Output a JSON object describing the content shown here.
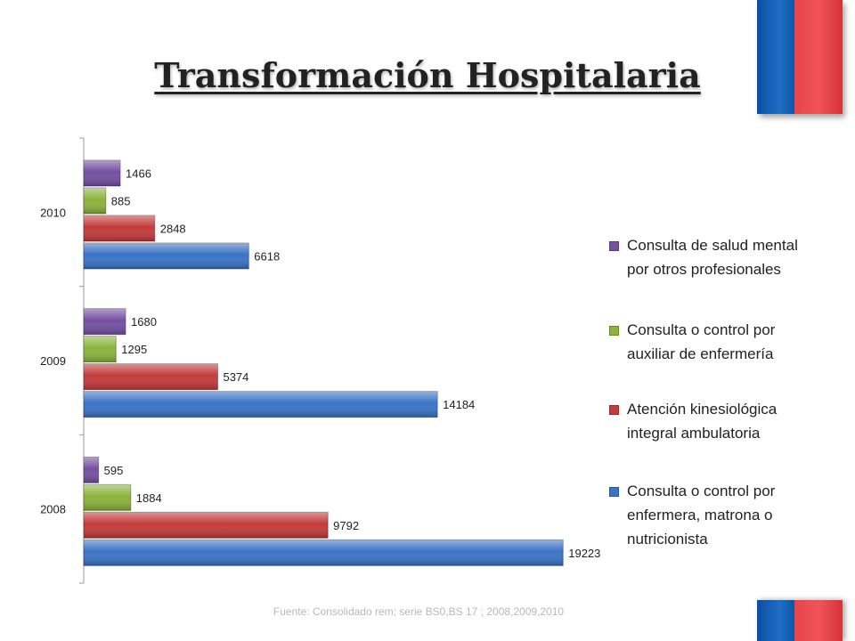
{
  "slide": {
    "title": "Transformación Hospitalaria",
    "source": "Fuente: Consolidado rem; serie BS0,BS 17 ; 2008,2009,2010"
  },
  "colors": {
    "flag_blue": "#1f6dc4",
    "flag_red": "#e8434a"
  },
  "chart_data": {
    "type": "bar",
    "orientation": "horizontal",
    "categories": [
      "2008",
      "2009",
      "2010"
    ],
    "series": [
      {
        "name": "Consulta o control por enfermera, matrona o nutricionista",
        "values": [
          19223,
          14184,
          6618
        ],
        "color": "#3a74c6"
      },
      {
        "name": "Atención kinesiológica integral ambulatoria",
        "values": [
          9792,
          5374,
          2848
        ],
        "color": "#c43b3b"
      },
      {
        "name": "Consulta o control por auxiliar de enfermería",
        "values": [
          1884,
          1295,
          885
        ],
        "color": "#8cb43c"
      },
      {
        "name": "Consulta de salud mental por otros profesionales",
        "values": [
          595,
          1680,
          1466
        ],
        "color": "#7550a3"
      }
    ],
    "xlim": [
      0,
      20000
    ],
    "grid": false,
    "data_labels": true,
    "legend": "right"
  }
}
